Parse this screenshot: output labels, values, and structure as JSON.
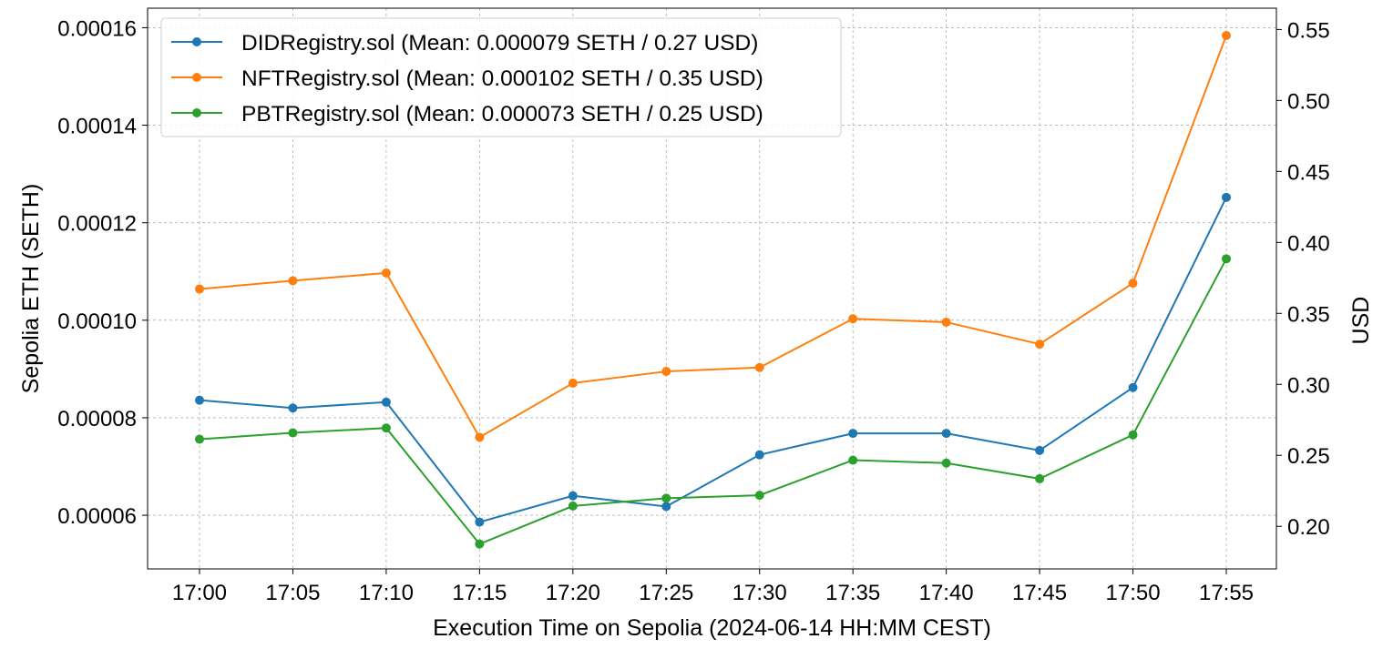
{
  "chart_data": {
    "type": "line",
    "title": "",
    "xlabel": "Execution Time on Sepolia (2024-06-14 HH:MM CEST)",
    "ylabel": "Sepolia ETH (SETH)",
    "ylabel_right": "USD",
    "categories": [
      "17:00",
      "17:05",
      "17:10",
      "17:15",
      "17:20",
      "17:25",
      "17:30",
      "17:35",
      "17:40",
      "17:45",
      "17:50",
      "17:55"
    ],
    "ylim": [
      4.9e-05,
      0.000164
    ],
    "ylim_right": [
      0.17,
      0.565
    ],
    "yticks": [
      "0.00006",
      "0.00008",
      "0.00010",
      "0.00012",
      "0.00014",
      "0.00016"
    ],
    "yticks_values": [
      6e-05,
      8e-05,
      0.0001,
      0.00012,
      0.00014,
      0.00016
    ],
    "yticks_right": [
      "0.20",
      "0.25",
      "0.30",
      "0.35",
      "0.40",
      "0.45",
      "0.50",
      "0.55"
    ],
    "yticks_right_values": [
      0.2,
      0.25,
      0.3,
      0.35,
      0.4,
      0.45,
      0.5,
      0.55
    ],
    "grid": true,
    "legend_position": "top-left",
    "series": [
      {
        "name": "DIDRegistry.sol (Mean: 0.000079 SETH / 0.27 USD)",
        "color": "#1f77b4",
        "values": [
          8.36e-05,
          8.2e-05,
          8.32e-05,
          5.86e-05,
          6.4e-05,
          6.18e-05,
          7.24e-05,
          7.68e-05,
          7.68e-05,
          7.33e-05,
          8.62e-05,
          0.0001252
        ]
      },
      {
        "name": "NFTRegistry.sol (Mean: 0.000102 SETH / 0.35 USD)",
        "color": "#ff7f0e",
        "values": [
          0.0001064,
          0.0001081,
          0.0001097,
          7.6e-05,
          8.71e-05,
          8.95e-05,
          9.03e-05,
          0.0001003,
          9.96e-05,
          9.51e-05,
          0.0001076,
          0.0001584
        ]
      },
      {
        "name": "PBTRegistry.sol (Mean: 0.000073 SETH / 0.25 USD)",
        "color": "#2ca02c",
        "values": [
          7.56e-05,
          7.69e-05,
          7.79e-05,
          5.41e-05,
          6.19e-05,
          6.35e-05,
          6.41e-05,
          7.13e-05,
          7.07e-05,
          6.75e-05,
          7.65e-05,
          0.0001126
        ]
      }
    ]
  }
}
